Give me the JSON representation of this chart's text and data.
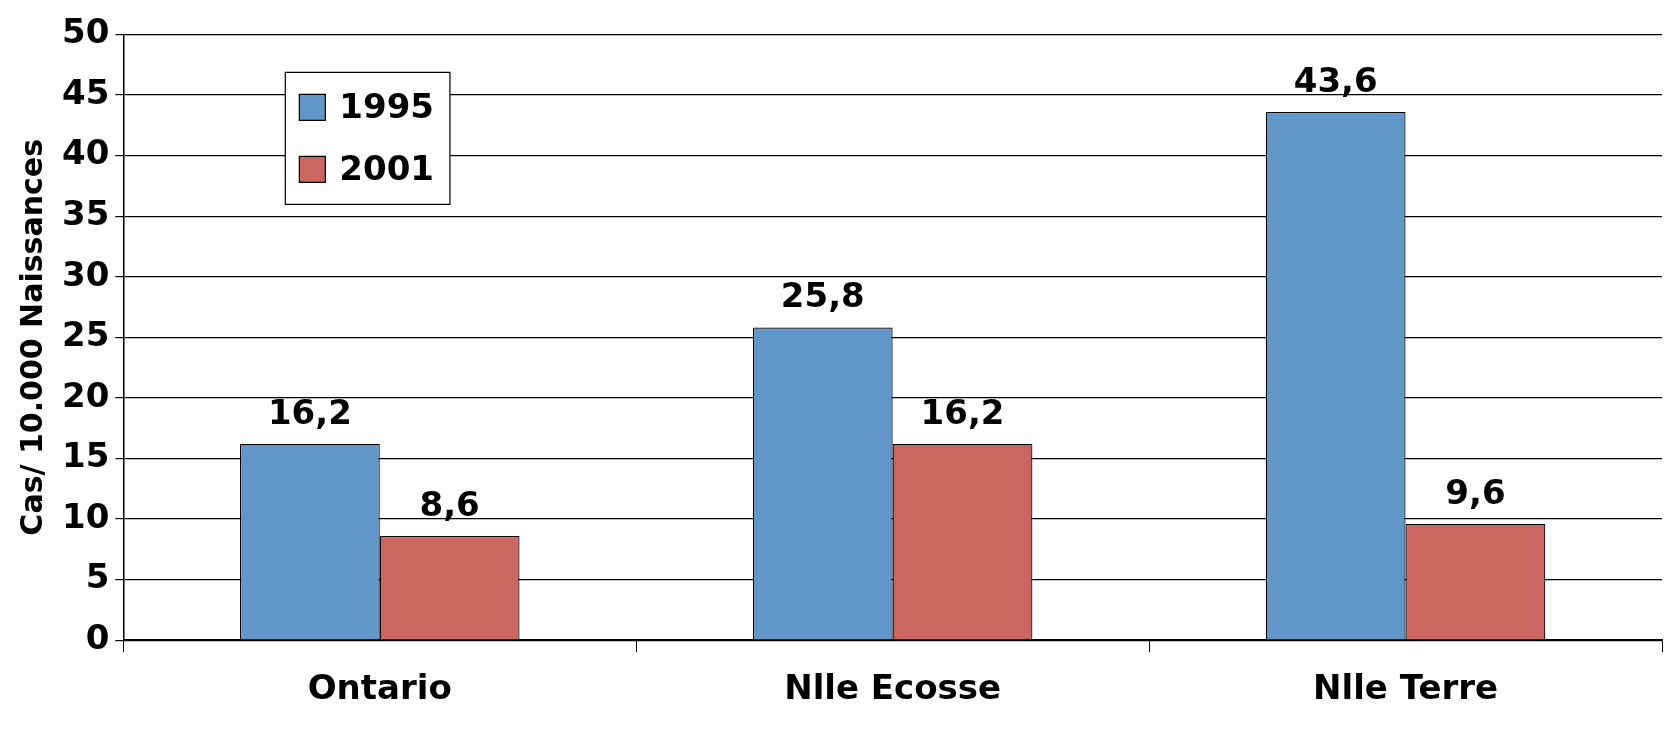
{
  "chart_data": {
    "type": "bar",
    "ylabel": "Cas/ 10.000 Naissances",
    "categories": [
      "Ontario",
      "Nlle Ecosse",
      "Nlle Terre"
    ],
    "series": [
      {
        "name": "1995",
        "color": "#6096c8",
        "values": [
          16.2,
          25.8,
          43.6
        ],
        "value_labels": [
          "16,2",
          "25,8",
          "43,6"
        ]
      },
      {
        "name": "2001",
        "color": "#cc6660",
        "values": [
          8.6,
          16.2,
          9.6
        ],
        "value_labels": [
          "8,6",
          "16,2",
          "9,6"
        ]
      }
    ],
    "ylim": [
      0,
      50
    ],
    "yticks": [
      0,
      5,
      10,
      15,
      20,
      25,
      30,
      35,
      40,
      45,
      50
    ],
    "grid": "y",
    "legend": "top left"
  }
}
